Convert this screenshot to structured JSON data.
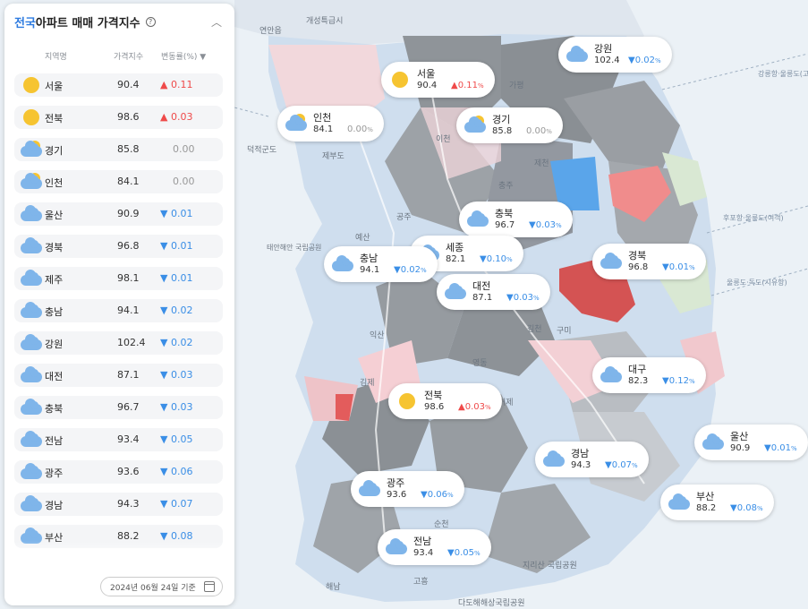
{
  "panel": {
    "title_accent": "전국",
    "title_rest": " 아파트 매매 가격지수",
    "help_icon": "?",
    "collapse_icon": "chevron-up-icon",
    "collapse_glyph": "︿",
    "columns": [
      "지역명",
      "가격지수",
      "변동률(%) ▼"
    ],
    "items": [
      {
        "name": "서울",
        "value": "90.4",
        "change": "0.11",
        "dir": "up",
        "icon": "sun-icon"
      },
      {
        "name": "전북",
        "value": "98.6",
        "change": "0.03",
        "dir": "up",
        "icon": "sun-icon"
      },
      {
        "name": "경기",
        "value": "85.8",
        "change": "0.00",
        "dir": "none",
        "icon": "partly-cloudy-icon"
      },
      {
        "name": "인천",
        "value": "84.1",
        "change": "0.00",
        "dir": "none",
        "icon": "partly-cloudy-icon"
      },
      {
        "name": "울산",
        "value": "90.9",
        "change": "0.01",
        "dir": "down",
        "icon": "cloud-icon"
      },
      {
        "name": "경북",
        "value": "96.8",
        "change": "0.01",
        "dir": "down",
        "icon": "cloud-icon"
      },
      {
        "name": "제주",
        "value": "98.1",
        "change": "0.01",
        "dir": "down",
        "icon": "cloud-icon"
      },
      {
        "name": "충남",
        "value": "94.1",
        "change": "0.02",
        "dir": "down",
        "icon": "cloud-icon"
      },
      {
        "name": "강원",
        "value": "102.4",
        "change": "0.02",
        "dir": "down",
        "icon": "cloud-icon"
      },
      {
        "name": "대전",
        "value": "87.1",
        "change": "0.03",
        "dir": "down",
        "icon": "cloud-icon"
      },
      {
        "name": "충북",
        "value": "96.7",
        "change": "0.03",
        "dir": "down",
        "icon": "cloud-icon"
      },
      {
        "name": "전남",
        "value": "93.4",
        "change": "0.05",
        "dir": "down",
        "icon": "cloud-icon"
      },
      {
        "name": "광주",
        "value": "93.6",
        "change": "0.06",
        "dir": "down",
        "icon": "cloud-icon"
      },
      {
        "name": "경남",
        "value": "94.3",
        "change": "0.07",
        "dir": "down",
        "icon": "cloud-icon"
      },
      {
        "name": "부산",
        "value": "88.2",
        "change": "0.08",
        "dir": "down",
        "icon": "cloud-icon"
      }
    ],
    "date_label": "2024년 06월 24일 기준",
    "calendar_icon": "calendar-icon"
  },
  "markers": [
    {
      "name": "서울",
      "value": "90.4",
      "change": "0.11",
      "dir": "up",
      "icon": "sun"
    },
    {
      "name": "강원",
      "value": "102.4",
      "change": "0.02",
      "dir": "down",
      "icon": "cloud"
    },
    {
      "name": "인천",
      "value": "84.1",
      "change": "0.00",
      "dir": "none",
      "icon": "mix"
    },
    {
      "name": "경기",
      "value": "85.8",
      "change": "0.00",
      "dir": "none",
      "icon": "mix"
    },
    {
      "name": "충북",
      "value": "96.7",
      "change": "0.03",
      "dir": "down",
      "icon": "cloud"
    },
    {
      "name": "세종",
      "value": "82.1",
      "change": "0.10",
      "dir": "down",
      "icon": "cloud"
    },
    {
      "name": "충남",
      "value": "94.1",
      "change": "0.02",
      "dir": "down",
      "icon": "cloud"
    },
    {
      "name": "경북",
      "value": "96.8",
      "change": "0.01",
      "dir": "down",
      "icon": "cloud"
    },
    {
      "name": "대전",
      "value": "87.1",
      "change": "0.03",
      "dir": "down",
      "icon": "cloud"
    },
    {
      "name": "대구",
      "value": "82.3",
      "change": "0.12",
      "dir": "down",
      "icon": "cloud"
    },
    {
      "name": "전북",
      "value": "98.6",
      "change": "0.03",
      "dir": "up",
      "icon": "sun"
    },
    {
      "name": "울산",
      "value": "90.9",
      "change": "0.01",
      "dir": "down",
      "icon": "cloud"
    },
    {
      "name": "경남",
      "value": "94.3",
      "change": "0.07",
      "dir": "down",
      "icon": "cloud"
    },
    {
      "name": "광주",
      "value": "93.6",
      "change": "0.06",
      "dir": "down",
      "icon": "cloud"
    },
    {
      "name": "부산",
      "value": "88.2",
      "change": "0.08",
      "dir": "down",
      "icon": "cloud"
    },
    {
      "name": "전남",
      "value": "93.4",
      "change": "0.05",
      "dir": "down",
      "icon": "cloud"
    }
  ],
  "percent_sign": "%",
  "map_labels": {
    "l1": "개성특급시",
    "l2": "연안읍",
    "l3": "덕적군도",
    "l4": "제부도",
    "l5": "태안해안\n국립공원",
    "l6": "강릉항·울릉도(고속)",
    "l7": "후포항·울릉도(여객)",
    "l8": "울릉도·독도(시유항)",
    "l9": "다도해해상국립공원",
    "l10": "순천",
    "l11": "고흥",
    "l12": "거제",
    "l13": "김천",
    "l14": "구미",
    "l15": "제천",
    "l16": "충주",
    "l17": "이천",
    "l18": "예산",
    "l19": "익산",
    "l20": "김제",
    "l21": "가평",
    "l22": "공주",
    "l23": "영동",
    "l24": "지리산\n국립공원",
    "l25": "해남"
  },
  "colors": {
    "up": "#ef4a4a",
    "down": "#3a8ee6",
    "accent": "#2d7be0"
  }
}
